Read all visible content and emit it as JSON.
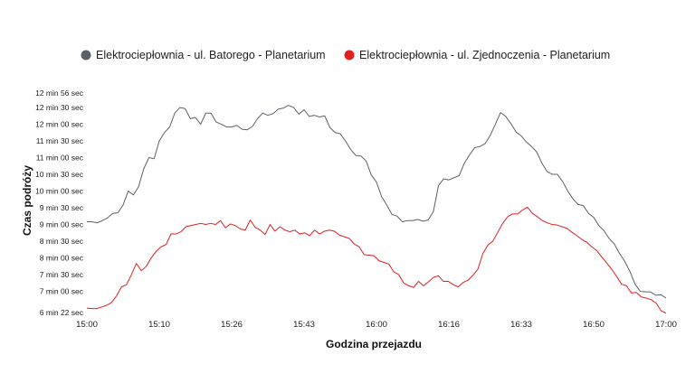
{
  "chart_data": {
    "type": "line",
    "xlabel": "Godzina przejazdu",
    "ylabel": "Czas podróży",
    "x_ticks": [
      "15:00",
      "15:10",
      "15:26",
      "15:43",
      "16:00",
      "16:16",
      "16:33",
      "16:50",
      "17:00"
    ],
    "y_ticks": [
      "6 min 22 sec",
      "7 min 00 sec",
      "7 min 30 sec",
      "8 min 00 sec",
      "8 min 30 sec",
      "9 min 00 sec",
      "9 min 30 sec",
      "10 min 00 sec",
      "10 min 30 sec",
      "11 min 00 sec",
      "11 min 30 sec",
      "12 min 00 sec",
      "12 min 30 sec",
      "12 min 56 sec"
    ],
    "y_tick_values": [
      382,
      420,
      450,
      480,
      510,
      540,
      570,
      600,
      630,
      660,
      690,
      720,
      750,
      776
    ],
    "ylim": [
      382,
      776
    ],
    "legend_position": "top-center",
    "grid": false,
    "series": [
      {
        "name": "Elektrociepłownia - ul. Batorego - Planetarium",
        "color": "#5b616a",
        "values": [
          545,
          545,
          543,
          547,
          552,
          560,
          561,
          575,
          600,
          593,
          608,
          640,
          660,
          658,
          690,
          705,
          715,
          740,
          750,
          748,
          730,
          732,
          720,
          740,
          740,
          724,
          720,
          715,
          715,
          718,
          711,
          710,
          716,
          730,
          740,
          736,
          739,
          747,
          749,
          754,
          750,
          738,
          746,
          734,
          736,
          733,
          735,
          714,
          705,
          703,
          690,
          675,
          664,
          663,
          654,
          629,
          616,
          590,
          575,
          558,
          555,
          545,
          547,
          547,
          549,
          546,
          548,
          563,
          610,
          622,
          620,
          624,
          628,
          650,
          665,
          678,
          680,
          685,
          700,
          720,
          741,
          734,
          721,
          706,
          699,
          688,
          680,
          670,
          650,
          635,
          630,
          630,
          617,
          600,
          586,
          576,
          574,
          560,
          553,
          538,
          529,
          515,
          505,
          488,
          474,
          456,
          433,
          420,
          419,
          419,
          413,
          414,
          408
        ]
      },
      {
        "name": "Elektrociepłownia - ul. Zjednoczenia - Planetarium",
        "color": "#e11f1f",
        "values": [
          390,
          389,
          389,
          392,
          395,
          400,
          412,
          428,
          432,
          450,
          470,
          457,
          465,
          480,
          492,
          500,
          504,
          523,
          523,
          527,
          536,
          538,
          540,
          542,
          540,
          542,
          540,
          547,
          534,
          541,
          538,
          532,
          530,
          548,
          535,
          530,
          522,
          540,
          528,
          536,
          530,
          527,
          530,
          523,
          525,
          520,
          530,
          523,
          528,
          530,
          528,
          521,
          518,
          515,
          505,
          500,
          486,
          485,
          484,
          475,
          472,
          469,
          455,
          450,
          435,
          430,
          427,
          438,
          430,
          437,
          445,
          448,
          438,
          438,
          432,
          428,
          436,
          440,
          449,
          460,
          488,
          503,
          510,
          526,
          542,
          554,
          559,
          559,
          566,
          571,
          560,
          554,
          547,
          543,
          540,
          539,
          536,
          533,
          526,
          520,
          513,
          508,
          500,
          493,
          482,
          471,
          460,
          447,
          433,
          430,
          417,
          418,
          410,
          408,
          405,
          399,
          385,
          381
        ]
      }
    ]
  }
}
